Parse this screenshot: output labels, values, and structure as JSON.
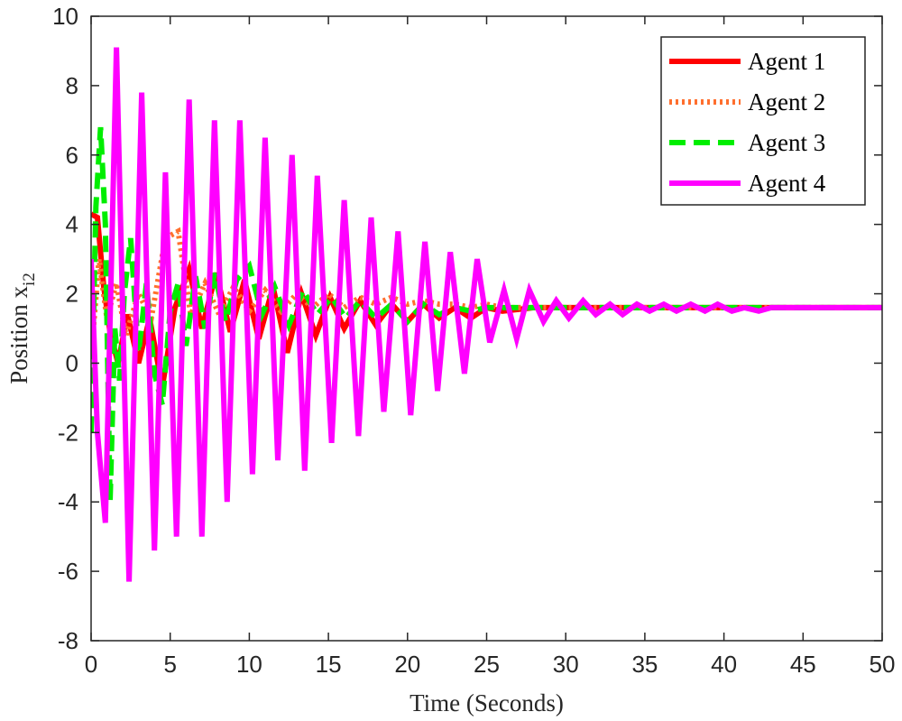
{
  "chart_data": {
    "type": "line",
    "title": "",
    "xlabel": "Time (Seconds)",
    "ylabel": "Position x",
    "ylabel_subscript": "i2",
    "xlim": [
      0,
      50
    ],
    "ylim": [
      -8,
      10
    ],
    "xticks": [
      0,
      5,
      10,
      15,
      20,
      25,
      30,
      35,
      40,
      45,
      50
    ],
    "yticks": [
      -8,
      -6,
      -4,
      -2,
      0,
      2,
      4,
      6,
      8,
      10
    ],
    "xtick_labels": [
      "0",
      "5",
      "10",
      "15",
      "20",
      "25",
      "30",
      "35",
      "40",
      "45",
      "50"
    ],
    "ytick_labels": [
      "-8",
      "-6",
      "-4",
      "-2",
      "0",
      "2",
      "4",
      "6",
      "8",
      "10"
    ],
    "grid": false,
    "legend_position": "top-right",
    "series": [
      {
        "name": "Agent 1",
        "color": "#ff0000",
        "style": "solid",
        "x": [
          0,
          0.4,
          0.8,
          1.2,
          1.7,
          2.3,
          3.0,
          3.7,
          4.5,
          5.3,
          6.2,
          7.0,
          7.9,
          8.8,
          9.7,
          10.6,
          11.5,
          12.4,
          13.3,
          14.2,
          15.1,
          16.0,
          17.0,
          18.0,
          19.0,
          20.0,
          21.0,
          22.0,
          23.0,
          24.0,
          25.0,
          26.0,
          28.0,
          30.0,
          33.0,
          36.0,
          40.0,
          45.0,
          50.0
        ],
        "y": [
          4.3,
          4.2,
          2.2,
          0.9,
          0.0,
          1.4,
          0.0,
          1.3,
          -0.7,
          1.6,
          2.7,
          1.0,
          2.6,
          0.9,
          2.4,
          0.7,
          2.2,
          0.3,
          2.0,
          0.8,
          1.9,
          1.0,
          1.8,
          1.1,
          1.7,
          1.2,
          1.7,
          1.3,
          1.6,
          1.3,
          1.6,
          1.5,
          1.6,
          1.6,
          1.6,
          1.6,
          1.6,
          1.6,
          1.6
        ]
      },
      {
        "name": "Agent 2",
        "color": "#ff6f2e",
        "style": "dotted",
        "x": [
          0,
          0.5,
          1.0,
          1.6,
          2.2,
          3.0,
          3.8,
          4.7,
          5.5,
          6.3,
          7.2,
          8.1,
          9.0,
          10.0,
          11.0,
          12.0,
          13.0,
          14.0,
          15.0,
          16.0,
          17.0,
          18.0,
          19.0,
          20.0,
          21.0,
          22.0,
          23.0,
          24.0,
          25.0,
          26.0,
          28.0,
          30.0,
          33.0,
          36.0,
          40.0,
          45.0,
          50.0
        ],
        "y": [
          0.2,
          3.0,
          1.3,
          2.3,
          0.8,
          2.0,
          1.3,
          3.6,
          3.8,
          1.4,
          2.3,
          1.4,
          2.2,
          1.5,
          2.1,
          1.5,
          2.0,
          1.6,
          2.0,
          1.6,
          1.9,
          1.7,
          1.9,
          1.7,
          1.8,
          1.7,
          1.7,
          1.6,
          1.7,
          1.6,
          1.6,
          1.6,
          1.6,
          1.6,
          1.6,
          1.6,
          1.6
        ]
      },
      {
        "name": "Agent 3",
        "color": "#00ee00",
        "style": "dashed",
        "x": [
          0,
          0.3,
          0.6,
          0.9,
          1.2,
          1.5,
          1.8,
          2.1,
          2.5,
          3.0,
          3.5,
          4.0,
          4.5,
          5.0,
          5.5,
          6.0,
          6.6,
          7.2,
          7.8,
          8.5,
          9.2,
          10.0,
          10.8,
          11.6,
          12.5,
          13.4,
          14.3,
          15.2,
          16.1,
          17.0,
          18.0,
          19.0,
          20.0,
          21.0,
          22.0,
          23.0,
          24.0,
          25.0,
          26.0,
          28.0,
          30.0,
          35.0,
          40.0,
          45.0,
          50.0
        ],
        "y": [
          -2.0,
          4.5,
          6.8,
          4.0,
          -4.0,
          1.0,
          -0.5,
          2.0,
          3.6,
          0.3,
          2.3,
          -0.3,
          -1.2,
          1.5,
          2.3,
          0.5,
          2.5,
          1.0,
          2.6,
          1.2,
          2.4,
          2.8,
          1.4,
          2.2,
          1.1,
          2.1,
          1.4,
          1.9,
          1.3,
          1.8,
          1.3,
          1.7,
          1.2,
          1.7,
          1.4,
          1.6,
          1.5,
          1.6,
          1.6,
          1.6,
          1.6,
          1.6,
          1.6,
          1.6,
          1.6
        ]
      },
      {
        "name": "Agent 4",
        "color": "#ff00ff",
        "style": "solid",
        "x": [
          0,
          0.4,
          0.9,
          1.6,
          2.4,
          3.2,
          4.0,
          4.7,
          5.4,
          6.2,
          7.0,
          7.8,
          8.6,
          9.4,
          10.2,
          11.0,
          11.8,
          12.7,
          13.5,
          14.3,
          15.2,
          16.0,
          16.9,
          17.7,
          18.5,
          19.4,
          20.2,
          21.1,
          21.9,
          22.7,
          23.6,
          24.4,
          25.2,
          26.1,
          26.9,
          27.7,
          28.6,
          29.4,
          30.2,
          31.1,
          31.9,
          32.8,
          33.6,
          34.5,
          35.3,
          36.2,
          37.0,
          37.9,
          38.8,
          39.6,
          40.5,
          41.3,
          42.2,
          43.0,
          44.0,
          46.0,
          48.0,
          50.0
        ],
        "y": [
          3.0,
          -2.0,
          -4.6,
          9.1,
          -6.3,
          7.8,
          -5.4,
          5.5,
          -5.0,
          7.6,
          -5.0,
          7.0,
          -4.0,
          7.0,
          -3.2,
          6.5,
          -2.8,
          6.0,
          -3.1,
          5.4,
          -2.3,
          4.7,
          -2.1,
          4.2,
          -1.4,
          3.8,
          -1.5,
          3.5,
          -0.8,
          3.2,
          -0.3,
          3.0,
          0.6,
          2.1,
          0.7,
          2.1,
          1.2,
          1.8,
          1.3,
          1.8,
          1.4,
          1.7,
          1.4,
          1.7,
          1.5,
          1.7,
          1.5,
          1.7,
          1.5,
          1.7,
          1.5,
          1.6,
          1.5,
          1.6,
          1.6,
          1.6,
          1.6,
          1.6
        ]
      }
    ]
  }
}
